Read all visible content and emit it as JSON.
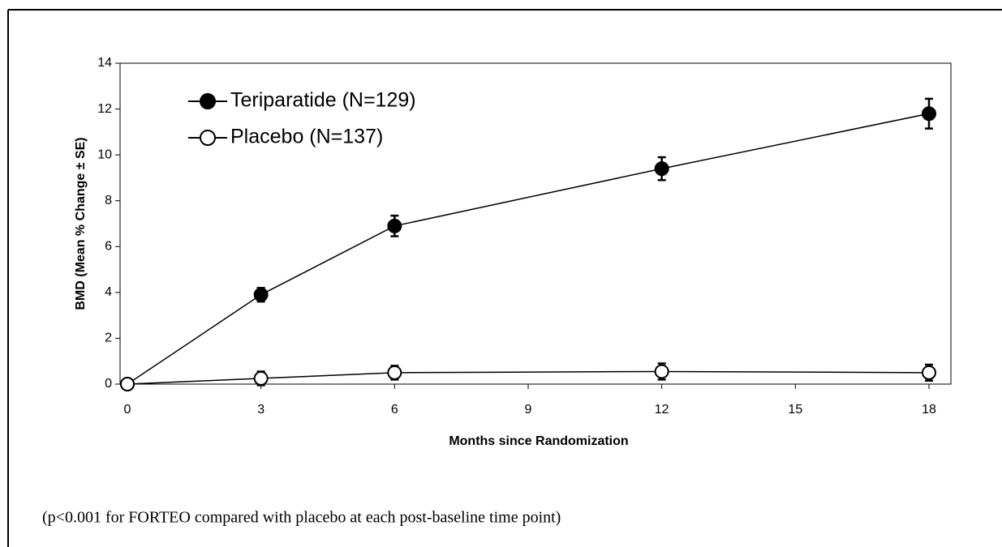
{
  "chart_data": {
    "type": "line",
    "x_label": "Months since Randomization",
    "y_label": "BMD (Mean % Change ± SE)",
    "x": [
      0,
      3,
      6,
      12,
      18
    ],
    "series": [
      {
        "name": "Teriparatide (N=129)",
        "color": "#000000",
        "marker": "filled",
        "values": [
          0,
          3.9,
          6.9,
          9.4,
          11.8
        ],
        "errors": [
          0,
          0.3,
          0.45,
          0.5,
          0.65
        ]
      },
      {
        "name": "Placebo (N=137)",
        "color": "#000000",
        "marker": "open",
        "values": [
          0,
          0.25,
          0.5,
          0.55,
          0.5
        ],
        "errors": [
          0,
          0.3,
          0.3,
          0.35,
          0.35
        ]
      }
    ],
    "xlim": [
      0,
      18
    ],
    "xticks": [
      0,
      3,
      6,
      9,
      12,
      15,
      18
    ],
    "ylim": [
      0,
      14
    ],
    "yticks": [
      0,
      2,
      4,
      6,
      8,
      10,
      12,
      14
    ],
    "legend": "upper-left",
    "note": "(p<0.001 for FORTEO compared with placebo at each post-baseline time point)"
  }
}
